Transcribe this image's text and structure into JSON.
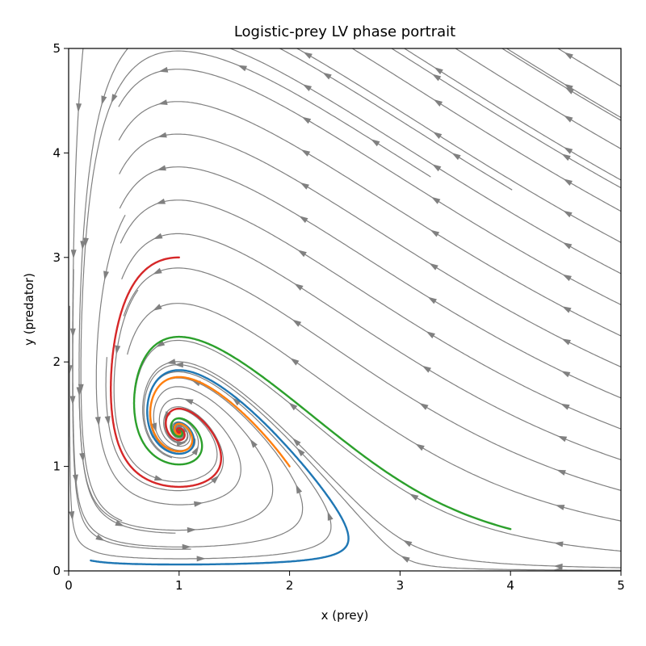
{
  "chart_data": {
    "type": "line",
    "title": "Logistic-prey LV phase portrait",
    "xlabel": "x (prey)",
    "ylabel": "y (predator)",
    "xlim": [
      0,
      5
    ],
    "ylim": [
      0,
      5
    ],
    "xticks": [
      "0",
      "1",
      "2",
      "3",
      "4",
      "5"
    ],
    "yticks": [
      "0",
      "1",
      "2",
      "3",
      "4",
      "5"
    ],
    "grid": false,
    "legend": "none",
    "background_field": {
      "kind": "streamplot",
      "color": "#808080",
      "model": {
        "prey_growth": 1.0,
        "prey_capacity": 3.0,
        "predation": 0.5,
        "predator_death": 0.5,
        "conversion": 0.5
      },
      "seeds": [
        [
          4.9,
          4.7
        ],
        [
          4.9,
          4.4
        ],
        [
          4.9,
          4.1
        ],
        [
          4.9,
          3.8
        ],
        [
          4.9,
          3.5
        ],
        [
          4.9,
          3.2
        ],
        [
          4.9,
          2.9
        ],
        [
          4.9,
          2.6
        ],
        [
          4.9,
          2.3
        ],
        [
          4.9,
          2.0
        ],
        [
          4.9,
          1.7
        ],
        [
          4.9,
          1.4
        ],
        [
          4.9,
          1.1
        ],
        [
          4.9,
          0.8
        ],
        [
          4.9,
          0.5
        ],
        [
          4.9,
          0.2
        ],
        [
          4.0,
          4.95
        ],
        [
          3.0,
          4.95
        ],
        [
          2.0,
          4.95
        ],
        [
          1.2,
          4.95
        ],
        [
          0.5,
          4.95
        ],
        [
          0.1,
          4.6
        ],
        [
          4.3,
          0.05
        ],
        [
          3.0,
          0.15
        ],
        [
          0.2,
          0.2
        ],
        [
          0.15,
          0.5
        ],
        [
          1.5,
          0.45
        ],
        [
          1.2,
          0.9
        ],
        [
          1.35,
          1.25
        ],
        [
          0.35,
          1.05
        ]
      ]
    },
    "series": [
      {
        "color": "#1f77b4",
        "start": [
          0.2,
          0.1
        ],
        "end": [
          1.0,
          1.33
        ]
      },
      {
        "color": "#ff7f0e",
        "start": [
          2.0,
          1.0
        ],
        "end": [
          1.0,
          1.33
        ]
      },
      {
        "color": "#2ca02c",
        "start": [
          4.0,
          0.4
        ],
        "end": [
          1.0,
          1.33
        ]
      },
      {
        "color": "#d62728",
        "start": [
          1.0,
          3.0
        ],
        "end": [
          1.0,
          1.33
        ]
      }
    ]
  }
}
